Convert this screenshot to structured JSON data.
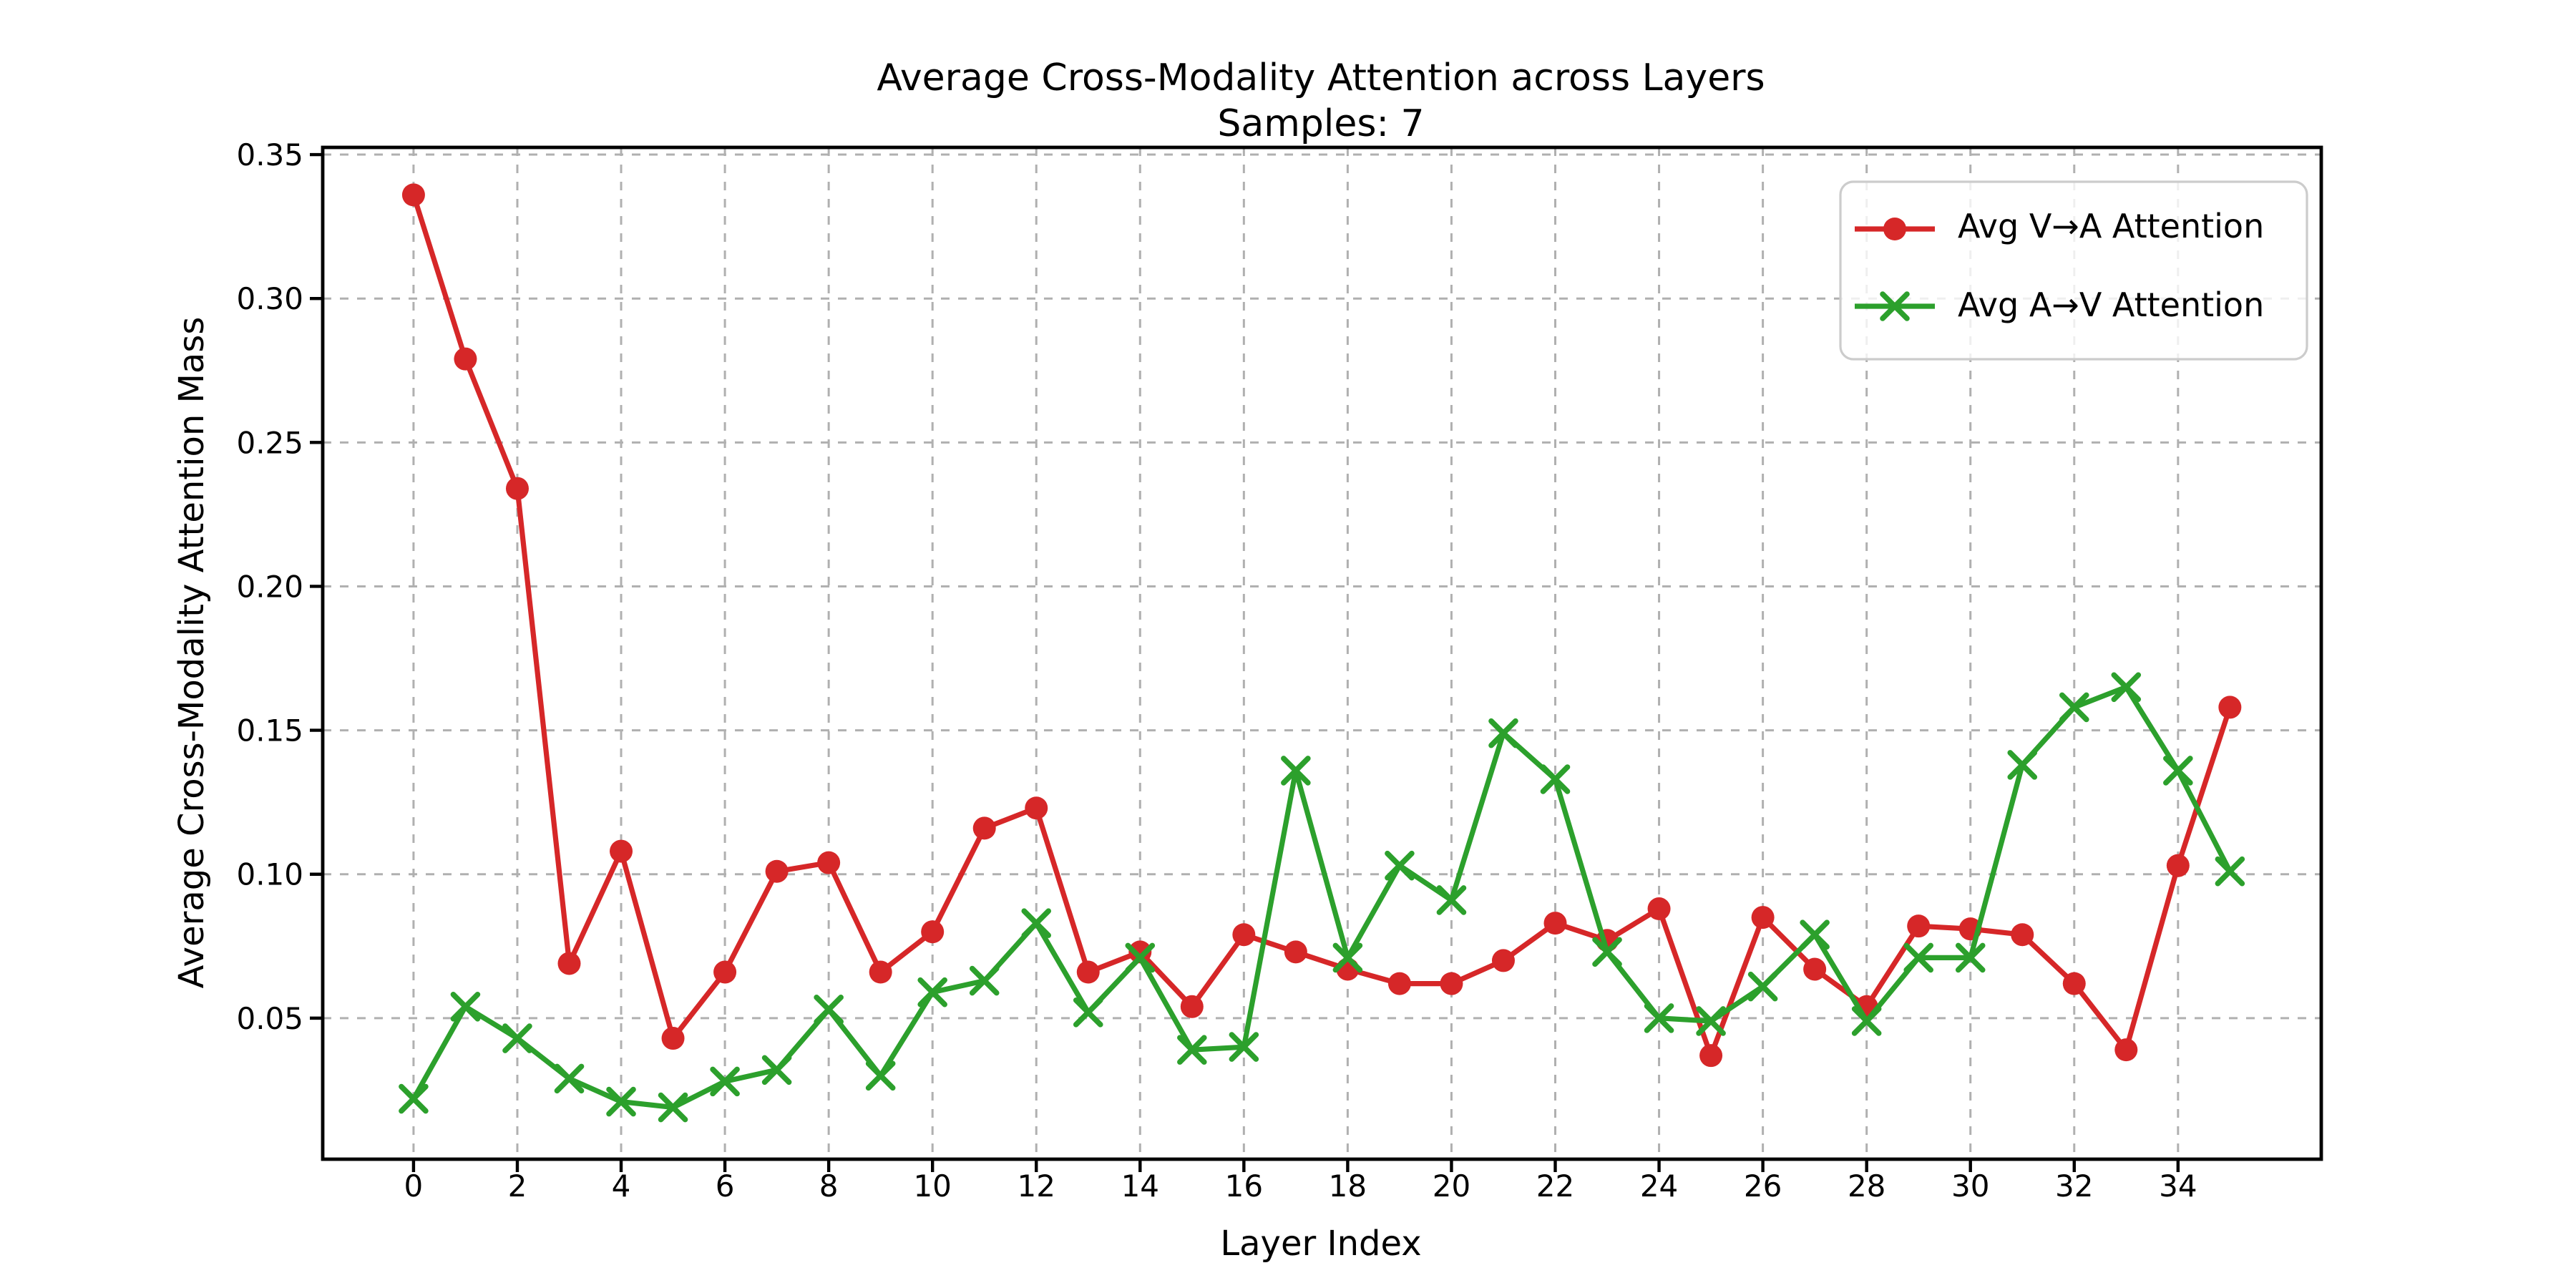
{
  "figure": {
    "background": "#ffffff",
    "text_color": "#000000",
    "grid_color": "#b0b0b0",
    "legend_border_color": "#cccccc"
  },
  "chart_data": {
    "type": "line",
    "title": "Average Cross-Modality Attention across Layers",
    "subtitle": "Samples: 7",
    "xlabel": "Layer Index",
    "ylabel": "Average Cross-Modality Attention Mass",
    "grid": {
      "visible": true,
      "style": "dashed"
    },
    "legend_position": "upper right",
    "xlim": [
      -1.75,
      36.76
    ],
    "ylim": [
      0.001,
      0.3525
    ],
    "x_ticks": {
      "values": [
        0,
        2,
        4,
        6,
        8,
        10,
        12,
        14,
        16,
        18,
        20,
        22,
        24,
        26,
        28,
        30,
        32,
        34
      ],
      "labels": [
        "0",
        "2",
        "4",
        "6",
        "8",
        "10",
        "12",
        "14",
        "16",
        "18",
        "20",
        "22",
        "24",
        "26",
        "28",
        "30",
        "32",
        "34"
      ]
    },
    "y_ticks": {
      "values": [
        0.05,
        0.1,
        0.15,
        0.2,
        0.25,
        0.3,
        0.35
      ],
      "labels": [
        "0.05",
        "0.10",
        "0.15",
        "0.20",
        "0.25",
        "0.30",
        "0.35"
      ]
    },
    "x": [
      0,
      1,
      2,
      3,
      4,
      5,
      6,
      7,
      8,
      9,
      10,
      11,
      12,
      13,
      14,
      15,
      16,
      17,
      18,
      19,
      20,
      21,
      22,
      23,
      24,
      25,
      26,
      27,
      28,
      29,
      30,
      31,
      32,
      33,
      34,
      35
    ],
    "series": [
      {
        "name": "Avg V→A Attention",
        "color": "#d62728",
        "marker": "circle",
        "values": [
          0.336,
          0.279,
          0.234,
          0.069,
          0.108,
          0.043,
          0.066,
          0.101,
          0.104,
          0.066,
          0.08,
          0.116,
          0.123,
          0.066,
          0.073,
          0.054,
          0.079,
          0.073,
          0.067,
          0.062,
          0.062,
          0.07,
          0.083,
          0.077,
          0.088,
          0.037,
          0.085,
          0.067,
          0.054,
          0.082,
          0.081,
          0.079,
          0.062,
          0.039,
          0.103,
          0.158
        ]
      },
      {
        "name": "Avg A→V Attention",
        "color": "#2ca02c",
        "marker": "x",
        "values": [
          0.022,
          0.054,
          0.043,
          0.029,
          0.021,
          0.019,
          0.028,
          0.032,
          0.053,
          0.03,
          0.059,
          0.063,
          0.083,
          0.052,
          0.071,
          0.039,
          0.04,
          0.136,
          0.071,
          0.103,
          0.091,
          0.149,
          0.133,
          0.073,
          0.05,
          0.049,
          0.061,
          0.079,
          0.049,
          0.071,
          0.071,
          0.138,
          0.158,
          0.165,
          0.136,
          0.101
        ]
      }
    ]
  }
}
